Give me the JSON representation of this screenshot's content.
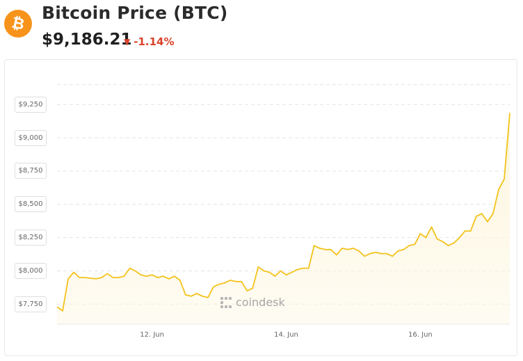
{
  "header": {
    "logo_glyph": "₿",
    "title": "Bitcoin Price (BTC)",
    "price": "$9,186.21",
    "change": "-1.14%",
    "change_icon": "triangle-down-icon",
    "change_color": "#d9422b",
    "brand_color": "#f7931a"
  },
  "watermark": {
    "text": "coindesk"
  },
  "chart_data": {
    "type": "area",
    "title": "",
    "xlabel": "",
    "ylabel": "",
    "line_color": "#f3c21a",
    "fill_color": "#fdf6df",
    "grid": true,
    "grid_style": "dashed-horizontal",
    "ylim": [
      7600,
      9450
    ],
    "xlim": [
      "2020-06-10T14:00",
      "2020-06-17T08:00"
    ],
    "y_ticks": [
      {
        "value": 7750,
        "label": "$7,750"
      },
      {
        "value": 8000,
        "label": "$8,000"
      },
      {
        "value": 8250,
        "label": "$8,250"
      },
      {
        "value": 8500,
        "label": "$8,500"
      },
      {
        "value": 8750,
        "label": "$8,750"
      },
      {
        "value": 9000,
        "label": "$9,000"
      },
      {
        "value": 9250,
        "label": "$9,250"
      }
    ],
    "x_ticks": [
      {
        "value": "2020-06-12T00:00",
        "label": "12. Jun"
      },
      {
        "value": "2020-06-14T00:00",
        "label": "14. Jun"
      },
      {
        "value": "2020-06-16T00:00",
        "label": "16. Jun"
      }
    ],
    "series": [
      {
        "name": "Bitcoin Price (BTC)",
        "points": [
          [
            "2020-06-10T14:00",
            7730
          ],
          [
            "2020-06-10T16:00",
            7700
          ],
          [
            "2020-06-10T18:00",
            7940
          ],
          [
            "2020-06-10T20:00",
            7990
          ],
          [
            "2020-06-10T22:00",
            7950
          ],
          [
            "2020-06-11T00:00",
            7950
          ],
          [
            "2020-06-11T02:00",
            7945
          ],
          [
            "2020-06-11T04:00",
            7940
          ],
          [
            "2020-06-11T06:00",
            7950
          ],
          [
            "2020-06-11T08:00",
            7980
          ],
          [
            "2020-06-11T10:00",
            7950
          ],
          [
            "2020-06-11T12:00",
            7950
          ],
          [
            "2020-06-11T14:00",
            7960
          ],
          [
            "2020-06-11T16:00",
            8020
          ],
          [
            "2020-06-11T18:00",
            8000
          ],
          [
            "2020-06-11T20:00",
            7970
          ],
          [
            "2020-06-11T22:00",
            7960
          ],
          [
            "2020-06-12T00:00",
            7970
          ],
          [
            "2020-06-12T02:00",
            7950
          ],
          [
            "2020-06-12T04:00",
            7960
          ],
          [
            "2020-06-12T06:00",
            7940
          ],
          [
            "2020-06-12T08:00",
            7960
          ],
          [
            "2020-06-12T10:00",
            7930
          ],
          [
            "2020-06-12T12:00",
            7820
          ],
          [
            "2020-06-12T14:00",
            7810
          ],
          [
            "2020-06-12T16:00",
            7830
          ],
          [
            "2020-06-12T18:00",
            7810
          ],
          [
            "2020-06-12T20:00",
            7800
          ],
          [
            "2020-06-12T22:00",
            7880
          ],
          [
            "2020-06-13T00:00",
            7900
          ],
          [
            "2020-06-13T02:00",
            7910
          ],
          [
            "2020-06-13T04:00",
            7930
          ],
          [
            "2020-06-13T06:00",
            7920
          ],
          [
            "2020-06-13T08:00",
            7920
          ],
          [
            "2020-06-13T10:00",
            7850
          ],
          [
            "2020-06-13T12:00",
            7870
          ],
          [
            "2020-06-13T14:00",
            8030
          ],
          [
            "2020-06-13T16:00",
            8000
          ],
          [
            "2020-06-13T18:00",
            7990
          ],
          [
            "2020-06-13T20:00",
            7960
          ],
          [
            "2020-06-13T22:00",
            8000
          ],
          [
            "2020-06-14T00:00",
            7970
          ],
          [
            "2020-06-14T02:00",
            7990
          ],
          [
            "2020-06-14T04:00",
            8010
          ],
          [
            "2020-06-14T06:00",
            8020
          ],
          [
            "2020-06-14T08:00",
            8020
          ],
          [
            "2020-06-14T10:00",
            8190
          ],
          [
            "2020-06-14T12:00",
            8170
          ],
          [
            "2020-06-14T14:00",
            8160
          ],
          [
            "2020-06-14T16:00",
            8160
          ],
          [
            "2020-06-14T18:00",
            8120
          ],
          [
            "2020-06-14T20:00",
            8170
          ],
          [
            "2020-06-14T22:00",
            8160
          ],
          [
            "2020-06-15T00:00",
            8170
          ],
          [
            "2020-06-15T02:00",
            8150
          ],
          [
            "2020-06-15T04:00",
            8110
          ],
          [
            "2020-06-15T06:00",
            8130
          ],
          [
            "2020-06-15T08:00",
            8140
          ],
          [
            "2020-06-15T10:00",
            8130
          ],
          [
            "2020-06-15T12:00",
            8130
          ],
          [
            "2020-06-15T14:00",
            8110
          ],
          [
            "2020-06-15T16:00",
            8150
          ],
          [
            "2020-06-15T18:00",
            8160
          ],
          [
            "2020-06-15T20:00",
            8190
          ],
          [
            "2020-06-15T22:00",
            8200
          ],
          [
            "2020-06-16T00:00",
            8280
          ],
          [
            "2020-06-16T02:00",
            8250
          ],
          [
            "2020-06-16T04:00",
            8330
          ],
          [
            "2020-06-16T06:00",
            8240
          ],
          [
            "2020-06-16T08:00",
            8220
          ],
          [
            "2020-06-16T10:00",
            8190
          ],
          [
            "2020-06-16T12:00",
            8210
          ],
          [
            "2020-06-16T14:00",
            8250
          ],
          [
            "2020-06-16T16:00",
            8300
          ],
          [
            "2020-06-16T18:00",
            8300
          ],
          [
            "2020-06-16T20:00",
            8410
          ],
          [
            "2020-06-16T22:00",
            8430
          ],
          [
            "2020-06-17T00:00",
            8370
          ],
          [
            "2020-06-17T02:00",
            8430
          ],
          [
            "2020-06-17T04:00",
            8610
          ],
          [
            "2020-06-17T06:00",
            8690
          ],
          [
            "2020-06-17T08:00",
            9186
          ]
        ]
      }
    ],
    "legend": "none"
  }
}
